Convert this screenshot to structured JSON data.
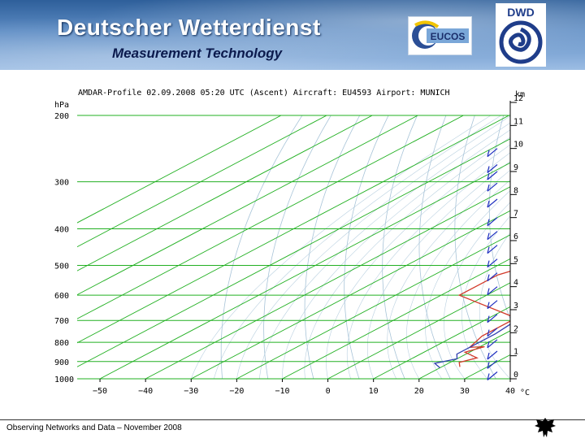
{
  "header": {
    "title": "Deutscher Wetterdienst",
    "subtitle": "Measurement Technology",
    "logo_eucos_text": "EUCOS",
    "logo_dwd_text": "DWD"
  },
  "footer": {
    "text": "Observing Networks and Data – November 2008"
  },
  "colors": {
    "isobar": "#22b022",
    "adiabat": "#a8c4d8",
    "temperature": "#d23a2a",
    "dewpoint": "#2f3fb0",
    "wind_barb": "#2030c0"
  },
  "chart_data": {
    "type": "line",
    "subtype": "skew-t log-p aerological diagram",
    "title": "AMDAR-Profile 02.09.2008 05:20 UTC (Ascent) Aircraft: EU4593 Airport: MUNICH",
    "xlabel": "°C",
    "ylabel": "hPa",
    "y2label": "km",
    "xlim": [
      -55,
      40
    ],
    "ylim": [
      1000,
      200
    ],
    "x_ticks": [
      "−50",
      "−40",
      "−30",
      "−20",
      "−10",
      "0",
      "10",
      "20",
      "30",
      "40"
    ],
    "x_tick_values": [
      -50,
      -40,
      -30,
      -20,
      -10,
      0,
      10,
      20,
      30,
      40
    ],
    "p_ticks": [
      "200",
      "300",
      "400",
      "500",
      "600",
      "700",
      "800",
      "900",
      "1000"
    ],
    "p_tick_values": [
      200,
      300,
      400,
      500,
      600,
      700,
      800,
      900,
      1000
    ],
    "km_ticks": [
      "12",
      "11",
      "10",
      "9",
      "8",
      "7",
      "6",
      "5",
      "4",
      "3",
      "2",
      "1",
      "0"
    ],
    "km_tick_values": [
      12,
      11,
      10,
      9,
      8,
      7,
      6,
      5,
      4,
      3,
      2,
      1,
      0
    ],
    "series": [
      {
        "name": "Temperature",
        "points": [
          [
            -9,
            300
          ],
          [
            -1,
            310
          ],
          [
            0,
            360
          ],
          [
            2,
            400
          ],
          [
            5,
            435
          ],
          [
            -3,
            500
          ],
          [
            -6,
            530
          ],
          [
            -6,
            600
          ],
          [
            16,
            690
          ],
          [
            16,
            770
          ],
          [
            18,
            825
          ],
          [
            21,
            822
          ],
          [
            19,
            850
          ],
          [
            24,
            880
          ],
          [
            22,
            905
          ],
          [
            24,
            930
          ]
        ]
      },
      {
        "name": "Dewpoint",
        "points": [
          [
            -6,
            296
          ],
          [
            -5,
            320
          ],
          [
            -2,
            390
          ],
          [
            4,
            440
          ],
          [
            10,
            500
          ],
          [
            16,
            560
          ],
          [
            17,
            650
          ],
          [
            17,
            700
          ],
          [
            18,
            760
          ],
          [
            18,
            810
          ],
          [
            18,
            860
          ],
          [
            20,
            885
          ],
          [
            17,
            910
          ],
          [
            20,
            935
          ]
        ]
      }
    ],
    "wind_barbs_at_km": [
      10,
      9.3,
      9,
      8.5,
      7.8,
      7,
      6.4,
      5.8,
      5.2,
      4.6,
      4,
      3.4,
      2.8,
      2.2,
      1.7,
      1.2,
      0.8,
      0.3
    ],
    "grid": true
  }
}
